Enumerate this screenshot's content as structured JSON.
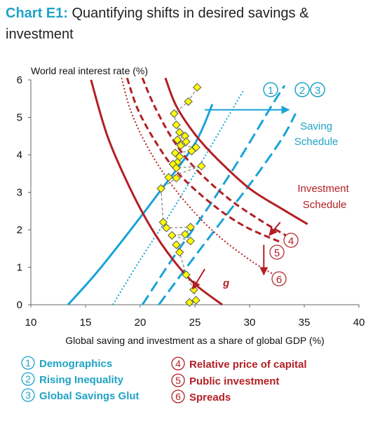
{
  "title": {
    "label": "Chart E1:",
    "text": "Quantifying shifts in desired savings & investment"
  },
  "colors": {
    "saving": "#1aa3d8",
    "investment": "#b21f24",
    "panel": "#20a3c6",
    "marker_fill": "#ffff00",
    "marker_line": "#555555"
  },
  "chart_data": {
    "type": "line",
    "xlabel": "Global saving and investment as a share of global GDP (%)",
    "ylabel": "World real interest rate (%)",
    "xlim": [
      10,
      40
    ],
    "ylim": [
      0,
      6
    ],
    "xticks": [
      "10",
      "15",
      "20",
      "25",
      "30",
      "35",
      "40"
    ],
    "yticks": [
      "0",
      "1",
      "2",
      "3",
      "4",
      "5",
      "6"
    ],
    "grid": false,
    "annotations": {
      "saving_schedule": [
        "Saving",
        "Schedule"
      ],
      "investment_schedule": [
        "Investment",
        "Schedule"
      ],
      "g": "g"
    },
    "circled_markers": {
      "saving": [
        "1",
        "2",
        "3"
      ],
      "investment": [
        "4",
        "5",
        "6"
      ]
    },
    "curves": [
      {
        "group": "saving",
        "style": "solid",
        "points": [
          [
            13.4,
            0
          ],
          [
            16,
            0.85
          ],
          [
            19,
            1.95
          ],
          [
            22,
            3.1
          ],
          [
            25,
            4.3
          ],
          [
            26.6,
            5.35
          ]
        ]
      },
      {
        "group": "saving",
        "style": "dotted",
        "points": [
          [
            17.5,
            0
          ],
          [
            20,
            1.2
          ],
          [
            23,
            2.55
          ],
          [
            26,
            4
          ],
          [
            28,
            5
          ],
          [
            29.5,
            5.75
          ]
        ]
      },
      {
        "group": "saving",
        "style": "dashed",
        "points": [
          [
            20.2,
            0
          ],
          [
            23,
            1.25
          ],
          [
            26,
            2.5
          ],
          [
            29,
            3.85
          ],
          [
            32,
            5.3
          ],
          [
            33.2,
            5.85
          ]
        ]
      },
      {
        "group": "saving",
        "style": "dashed",
        "points": [
          [
            21.7,
            0
          ],
          [
            24.5,
            1.1
          ],
          [
            27.5,
            2.25
          ],
          [
            30.5,
            3.4
          ],
          [
            33,
            4.45
          ],
          [
            34.2,
            5.1
          ]
        ]
      },
      {
        "group": "investment",
        "style": "solid",
        "points": [
          [
            15.5,
            6
          ],
          [
            17,
            4.5
          ],
          [
            19,
            3.15
          ],
          [
            21,
            2.05
          ],
          [
            23,
            1.2
          ],
          [
            25,
            0.55
          ],
          [
            27.5,
            0
          ]
        ]
      },
      {
        "group": "investment",
        "style": "solid",
        "points": [
          [
            22.3,
            6.05
          ],
          [
            23.3,
            5.3
          ],
          [
            25,
            4.55
          ],
          [
            27,
            3.9
          ],
          [
            30,
            3.1
          ],
          [
            33,
            2.55
          ],
          [
            35.3,
            2.15
          ]
        ]
      },
      {
        "group": "investment",
        "style": "dashed",
        "points": [
          [
            20.2,
            6.05
          ],
          [
            21.3,
            5.3
          ],
          [
            23,
            4.4
          ],
          [
            25,
            3.65
          ],
          [
            28,
            2.85
          ],
          [
            31,
            2.25
          ],
          [
            33.6,
            1.8
          ]
        ]
      },
      {
        "group": "investment",
        "style": "dashed",
        "points": [
          [
            18.8,
            6.05
          ],
          [
            19.8,
            5.2
          ],
          [
            21.5,
            4.3
          ],
          [
            23.5,
            3.5
          ],
          [
            26.5,
            2.7
          ],
          [
            29.5,
            2.1
          ],
          [
            33,
            1.65
          ]
        ]
      },
      {
        "group": "investment",
        "style": "dotted",
        "points": [
          [
            18.3,
            6.05
          ],
          [
            19.1,
            5.2
          ],
          [
            20.5,
            4.3
          ],
          [
            22.5,
            3.35
          ],
          [
            25,
            2.45
          ],
          [
            27.5,
            1.75
          ],
          [
            30.5,
            1.1
          ],
          [
            32.9,
            0.7
          ]
        ]
      }
    ],
    "scatter": [
      [
        25.2,
        5.8
      ],
      [
        24.4,
        5.42
      ],
      [
        23.1,
        5.1
      ],
      [
        23.3,
        4.8
      ],
      [
        23.6,
        4.6
      ],
      [
        24.1,
        4.5
      ],
      [
        23.4,
        4.4
      ],
      [
        24.2,
        4.35
      ],
      [
        23.7,
        4.25
      ],
      [
        25.1,
        4.2
      ],
      [
        24.7,
        4.1
      ],
      [
        23.2,
        4.05
      ],
      [
        23.6,
        3.95
      ],
      [
        23.4,
        3.8
      ],
      [
        23.0,
        3.75
      ],
      [
        23.3,
        3.65
      ],
      [
        25.6,
        3.7
      ],
      [
        22.6,
        3.4
      ],
      [
        23.3,
        3.38
      ],
      [
        21.9,
        3.1
      ],
      [
        22.1,
        2.2
      ],
      [
        22.4,
        2.05
      ],
      [
        24.6,
        2.07
      ],
      [
        24.1,
        1.88
      ],
      [
        22.9,
        1.85
      ],
      [
        24.6,
        1.7
      ],
      [
        23.3,
        1.6
      ],
      [
        23.6,
        1.4
      ],
      [
        24.2,
        0.8
      ],
      [
        24.9,
        0.4
      ],
      [
        25.1,
        0.12
      ],
      [
        24.5,
        0.06
      ]
    ],
    "arrows": [
      {
        "from": [
          25.9,
          5.2
        ],
        "to": [
          33.6,
          5.2
        ]
      },
      {
        "from": [
          31.3,
          1.6
        ],
        "to": [
          31.3,
          0.8
        ]
      },
      {
        "from": [
          25.9,
          0.95
        ],
        "to": [
          24.8,
          0.42
        ]
      },
      {
        "from": [
          32.8,
          2.2
        ],
        "to": [
          31.8,
          1.85
        ]
      }
    ]
  },
  "legend": {
    "saving": [
      {
        "num": "1",
        "label": "Demographics"
      },
      {
        "num": "2",
        "label": "Rising Inequality"
      },
      {
        "num": "3",
        "label": "Global Savings Glut"
      }
    ],
    "investment": [
      {
        "num": "4",
        "label": "Relative price of capital"
      },
      {
        "num": "5",
        "label": "Public investment"
      },
      {
        "num": "6",
        "label": "Spreads"
      }
    ]
  }
}
